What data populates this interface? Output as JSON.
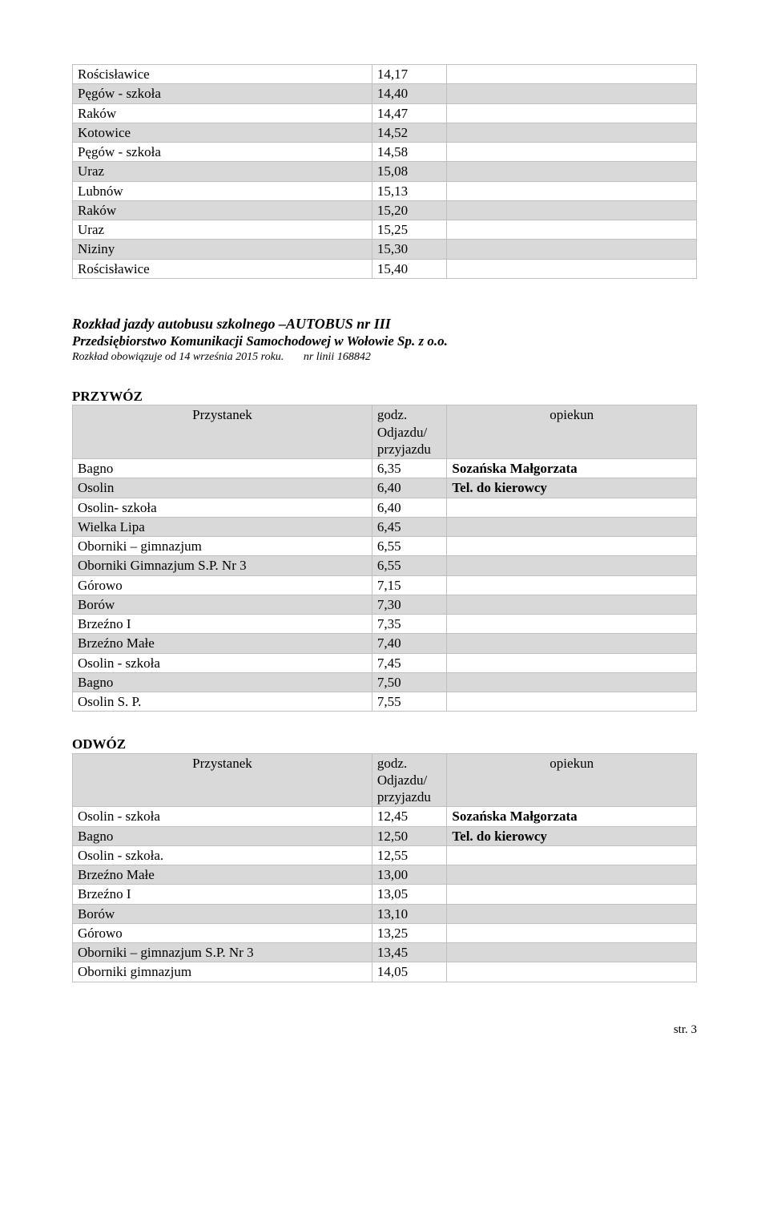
{
  "first_table": {
    "rows": [
      {
        "stop": "Rościsławice",
        "time": "14,17",
        "note": "",
        "alt": false
      },
      {
        "stop": "Pęgów - szkoła",
        "time": "14,40",
        "note": "",
        "alt": true
      },
      {
        "stop": "Raków",
        "time": "14,47",
        "note": "",
        "alt": false
      },
      {
        "stop": "Kotowice",
        "time": "14,52",
        "note": "",
        "alt": true
      },
      {
        "stop": "Pęgów - szkoła",
        "time": "14,58",
        "note": "",
        "alt": false
      },
      {
        "stop": "Uraz",
        "time": "15,08",
        "note": "",
        "alt": true
      },
      {
        "stop": "Lubnów",
        "time": "15,13",
        "note": "",
        "alt": false
      },
      {
        "stop": "Raków",
        "time": "15,20",
        "note": "",
        "alt": true
      },
      {
        "stop": "Uraz",
        "time": "15,25",
        "note": "",
        "alt": false
      },
      {
        "stop": "Niziny",
        "time": "15,30",
        "note": "",
        "alt": true
      },
      {
        "stop": "Rościsławice",
        "time": "15,40",
        "note": "",
        "alt": false
      }
    ]
  },
  "bus_block": {
    "title": "Rozkład jazdy autobusu szkolnego –AUTOBUS nr  III",
    "subtitle": "Przedsiębiorstwo Komunikacji Samochodowej w Wołowie Sp. z o.o.",
    "note_left": "Rozkład obowiązuje od  14 września 2015 roku.",
    "note_right": "nr linii 168842"
  },
  "przywoz": {
    "heading": "PRZYWÓZ",
    "header": {
      "stop_label": "Przystanek",
      "time_label1": "godz.",
      "time_label2": "Odjazdu/",
      "time_label3": "przyjazdu",
      "opiekun_label": "opiekun"
    },
    "rows": [
      {
        "stop": "Bagno",
        "time": "6,35",
        "note": "Sozańska Małgorzata",
        "alt": false,
        "bold_note": true
      },
      {
        "stop": "Osolin",
        "time": "6,40",
        "note": "Tel. do kierowcy",
        "alt": true,
        "bold_note": true
      },
      {
        "stop": "Osolin- szkoła",
        "time": "6,40",
        "note": "",
        "alt": false
      },
      {
        "stop": "Wielka Lipa",
        "time": "6,45",
        "note": "",
        "alt": true
      },
      {
        "stop": "Oborniki – gimnazjum",
        "time": "6,55",
        "note": "",
        "alt": false
      },
      {
        "stop": "Oborniki Gimnazjum S.P. Nr 3",
        "time": "6,55",
        "note": "",
        "alt": true
      },
      {
        "stop": "Górowo",
        "time": "7,15",
        "note": "",
        "alt": false
      },
      {
        "stop": "Borów",
        "time": "7,30",
        "note": "",
        "alt": true
      },
      {
        "stop": "Brzeźno I",
        "time": "7,35",
        "note": "",
        "alt": false
      },
      {
        "stop": "Brzeźno Małe",
        "time": "7,40",
        "note": "",
        "alt": true
      },
      {
        "stop": "Osolin - szkoła",
        "time": "7,45",
        "note": "",
        "alt": false
      },
      {
        "stop": "Bagno",
        "time": "7,50",
        "note": "",
        "alt": true
      },
      {
        "stop": "Osolin S. P.",
        "time": "7,55",
        "note": "",
        "alt": false
      }
    ]
  },
  "odwoz": {
    "heading": "ODWÓZ",
    "header": {
      "stop_label": "Przystanek",
      "time_label1": "godz.",
      "time_label2": "Odjazdu/",
      "time_label3": "przyjazdu",
      "opiekun_label": "opiekun"
    },
    "rows": [
      {
        "stop": "Osolin - szkoła",
        "time": "12,45",
        "note": "Sozańska Małgorzata",
        "alt": false,
        "bold_note": true
      },
      {
        "stop": "Bagno",
        "time": "12,50",
        "note": "Tel. do kierowcy",
        "alt": true,
        "bold_note": true
      },
      {
        "stop": "Osolin - szkoła.",
        "time": "12,55",
        "note": "",
        "alt": false
      },
      {
        "stop": "Brzeźno Małe",
        "time": "13,00",
        "note": "",
        "alt": true
      },
      {
        "stop": "Brzeźno I",
        "time": "13,05",
        "note": "",
        "alt": false
      },
      {
        "stop": "Borów",
        "time": "13,10",
        "note": "",
        "alt": true
      },
      {
        "stop": "Górowo",
        "time": "13,25",
        "note": "",
        "alt": false
      },
      {
        "stop": "Oborniki – gimnazjum S.P. Nr 3",
        "time": "13,45",
        "note": "",
        "alt": true
      },
      {
        "stop": "Oborniki gimnazjum",
        "time": "14,05",
        "note": "",
        "alt": false
      }
    ]
  },
  "page_num": "str. 3"
}
